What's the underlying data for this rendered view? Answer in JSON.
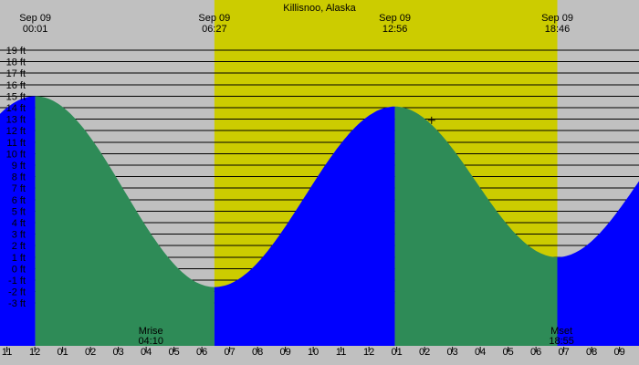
{
  "chart_data": {
    "type": "area",
    "title": "Killisnoo, Alaska",
    "y_unit": "ft",
    "y_ticks": [
      -3,
      -2,
      -1,
      0,
      1,
      2,
      3,
      4,
      5,
      6,
      7,
      8,
      9,
      10,
      11,
      12,
      13,
      14,
      15,
      16,
      17,
      18,
      19
    ],
    "y_tick_labels": [
      "-3 ft",
      "-2 ft",
      "-1 ft",
      "0 ft",
      "1 ft",
      "2 ft",
      "3 ft",
      "4 ft",
      "5 ft",
      "6 ft",
      "7 ft",
      "8 ft",
      "9 ft",
      "10 ft",
      "11 ft",
      "12 ft",
      "13 ft",
      "14 ft",
      "15 ft",
      "16 ft",
      "17 ft",
      "18 ft",
      "19 ft"
    ],
    "x_hour_labels": [
      "11",
      "12",
      "01",
      "02",
      "03",
      "04",
      "05",
      "06",
      "07",
      "08",
      "09",
      "10",
      "11",
      "12",
      "01",
      "02",
      "03",
      "04",
      "05",
      "06",
      "07",
      "08",
      "09"
    ],
    "top_labels": [
      {
        "date": "Sep 09",
        "time": "00:01"
      },
      {
        "date": "Sep 09",
        "time": "06:27"
      },
      {
        "date": "Sep 09",
        "time": "12:56"
      },
      {
        "date": "Sep 09",
        "time": "18:46"
      }
    ],
    "tide_extremes": [
      {
        "time": "00:01",
        "height_ft": 15.0,
        "kind": "high"
      },
      {
        "time": "06:27",
        "height_ft": -1.6,
        "kind": "low"
      },
      {
        "time": "12:56",
        "height_ft": 14.1,
        "kind": "high"
      },
      {
        "time": "18:46",
        "height_ft": 1.0,
        "kind": "low"
      }
    ],
    "daylight": {
      "start": "06:27",
      "end": "18:46"
    },
    "moon_events": [
      {
        "label": "Mrise",
        "time": "04:10"
      },
      {
        "label": "Mset",
        "time": "18:55"
      }
    ],
    "current_marker": {
      "time": "14:15",
      "height_ft": 12.9
    },
    "x_range_hours": [
      -1.25,
      21.7
    ],
    "y_range_ft": [
      -4.5,
      19.0
    ],
    "grid": true,
    "colors": {
      "night": "#c0c0c0",
      "day": "#cccc00",
      "rising": "#0000ff",
      "falling": "#2e8b57",
      "grid": "#000000"
    }
  }
}
